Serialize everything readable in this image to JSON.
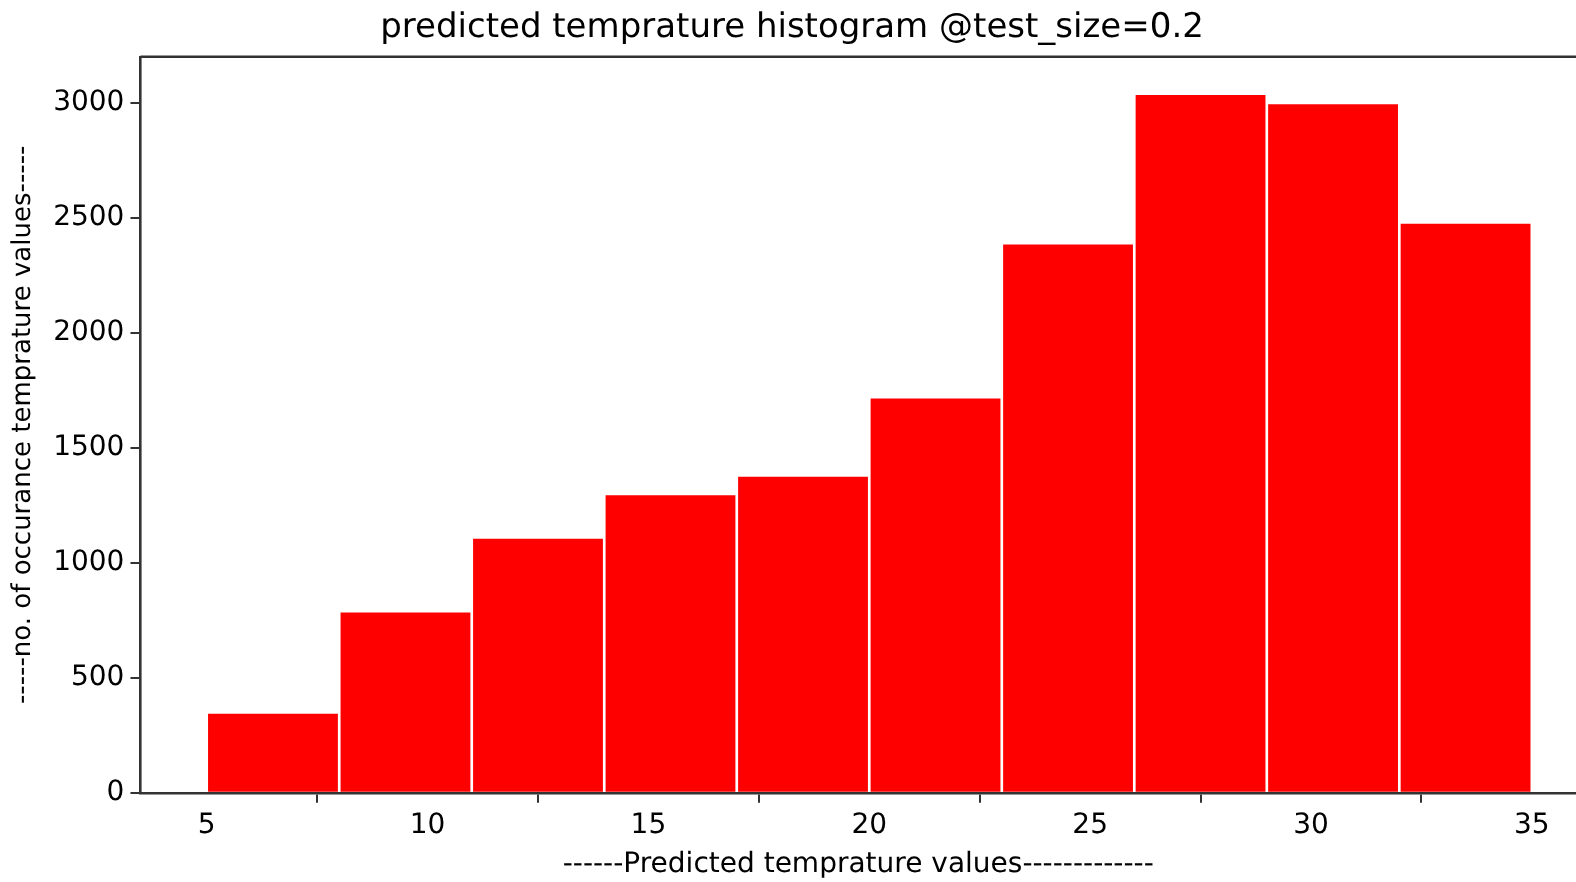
{
  "chart_data": {
    "type": "histogram",
    "title": "predicted temprature histogram @test_size=0.2",
    "xlabel": "------Predicted temprature values-------------",
    "ylabel": "-----no. of occurance temprature values-----",
    "bins": [
      5,
      8,
      11,
      14,
      17,
      20,
      23,
      26,
      29,
      32,
      35
    ],
    "values": [
      350,
      790,
      1110,
      1300,
      1380,
      1720,
      2390,
      3040,
      3000,
      2480
    ],
    "color": "#ff0000",
    "xlim": [
      3.5,
      36
    ],
    "xticks": [
      5,
      10,
      15,
      20,
      25,
      30,
      35
    ],
    "ylim": [
      0,
      3200
    ],
    "yticks": [
      0,
      500,
      1000,
      1500,
      2000,
      2500,
      3000
    ],
    "grid": false,
    "legend": false
  }
}
